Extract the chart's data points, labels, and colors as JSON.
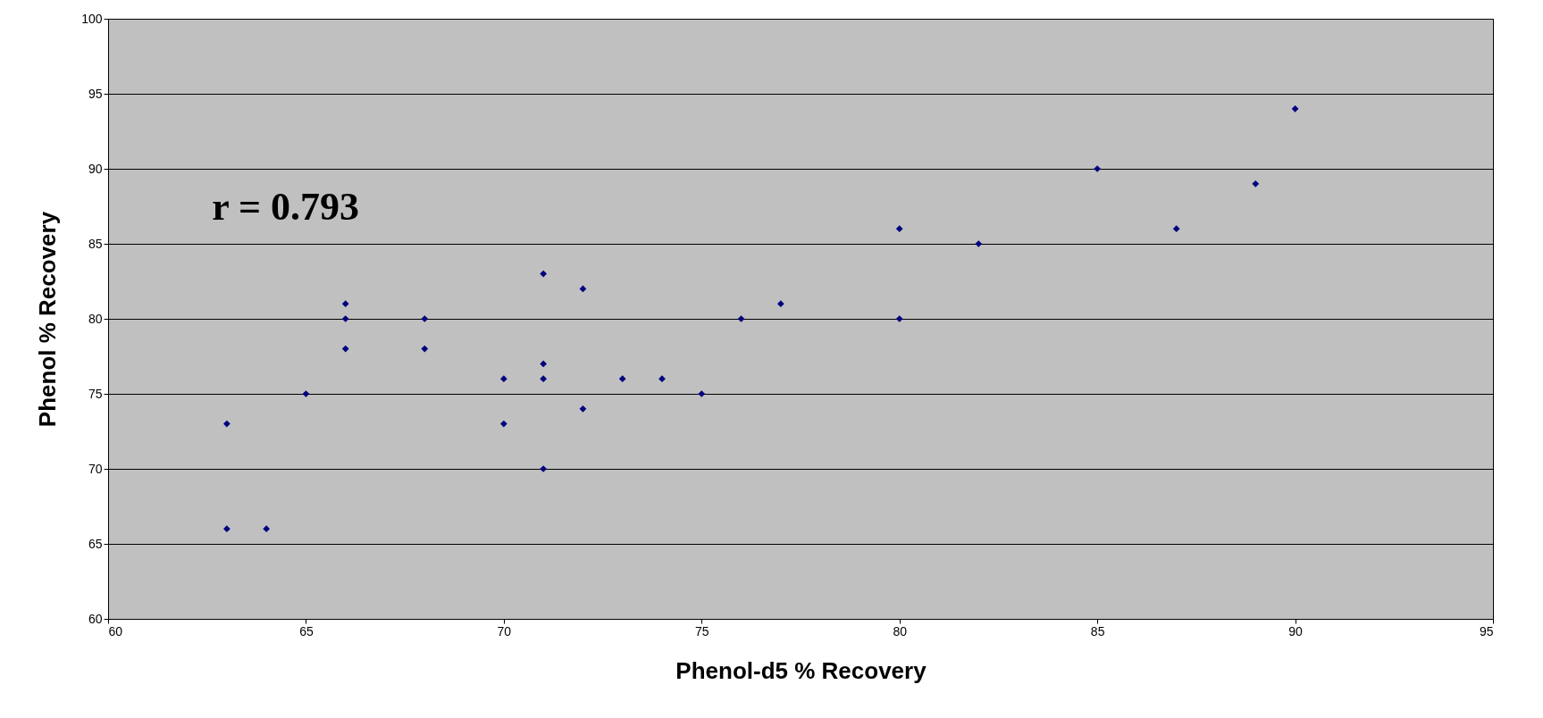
{
  "chart_data": {
    "type": "scatter",
    "xlabel": "Phenol-d5 % Recovery",
    "ylabel": "Phenol % Recovery",
    "x": [
      63,
      63,
      64,
      65,
      66,
      66,
      66,
      68,
      68,
      70,
      70,
      71,
      71,
      71,
      71,
      72,
      72,
      73,
      74,
      75,
      76,
      77,
      80,
      80,
      82,
      85,
      87,
      89,
      90
    ],
    "series": [
      {
        "color": "#000080",
        "values": [
          73,
          66,
          66,
          75,
          81,
          80,
          78,
          80,
          78,
          76,
          73,
          83,
          77,
          76,
          70,
          82,
          74,
          76,
          76,
          75,
          80,
          81,
          86,
          80,
          85,
          90,
          86,
          89,
          94
        ]
      }
    ],
    "xlim": [
      60,
      95
    ],
    "xticks": [
      60,
      65,
      70,
      75,
      80,
      85,
      90,
      95
    ],
    "ylim": [
      60,
      100
    ],
    "yticks": [
      60,
      65,
      70,
      75,
      80,
      85,
      90,
      95,
      100
    ],
    "grid": "y",
    "marker": "diamond",
    "annotations": [
      "r = 0.793"
    ]
  }
}
